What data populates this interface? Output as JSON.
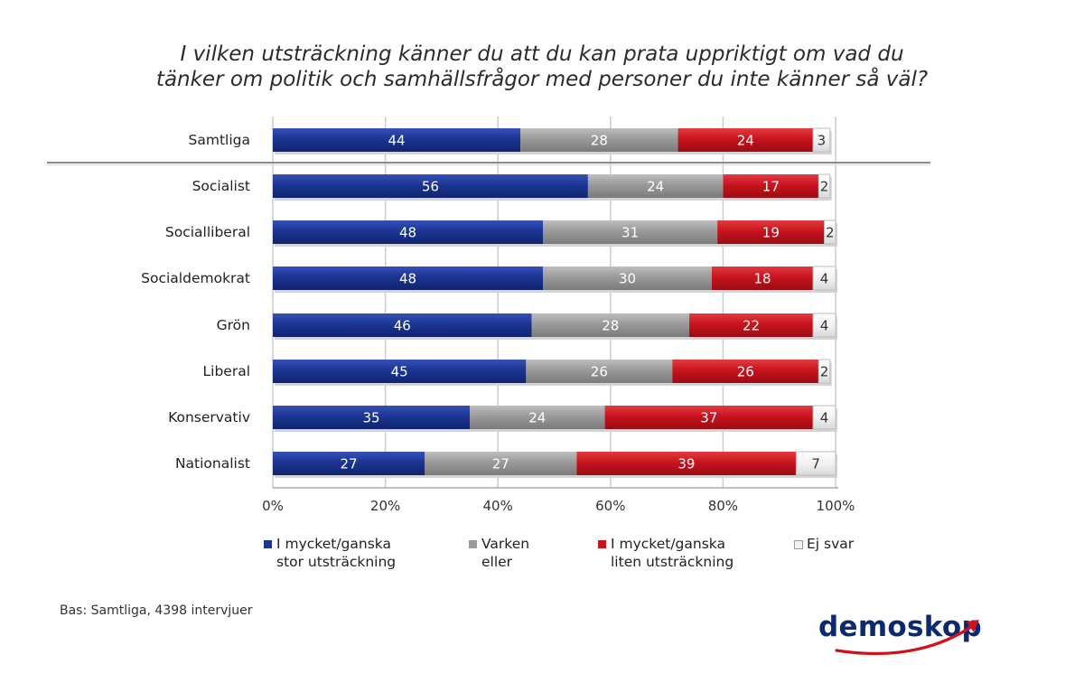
{
  "chart_data": {
    "type": "bar",
    "orientation": "horizontal",
    "stacked": true,
    "title_lines": [
      "I vilken utsträckning känner du att du kan prata uppriktigt om vad du",
      "tänker om politik och samhällsfrågor med personer du inte känner så väl?"
    ],
    "categories": [
      "Samtliga",
      "Socialist",
      "Socialliberal",
      "Socialdemokrat",
      "Grön",
      "Liberal",
      "Konservativ",
      "Nationalist"
    ],
    "series": [
      {
        "name": "I mycket/ganska stor utsträckning",
        "legend_lines": [
          "I mycket/ganska",
          "stor utsträckning"
        ],
        "color": "#1c3592",
        "values": [
          44,
          56,
          48,
          48,
          46,
          45,
          35,
          27
        ]
      },
      {
        "name": "Varken eller",
        "legend_lines": [
          "Varken",
          "eller"
        ],
        "color": "#9a9a9a",
        "values": [
          28,
          24,
          31,
          30,
          28,
          26,
          24,
          27
        ]
      },
      {
        "name": "I mycket/ganska liten utsträckning",
        "legend_lines": [
          "I mycket/ganska",
          "liten utsträckning"
        ],
        "color": "#c8141e",
        "values": [
          24,
          17,
          19,
          18,
          22,
          26,
          37,
          39
        ]
      },
      {
        "name": "Ej svar",
        "legend_lines": [
          "Ej svar"
        ],
        "color": "#f2f2f2",
        "values": [
          3,
          2,
          2,
          4,
          4,
          2,
          4,
          7
        ]
      }
    ],
    "x_ticks": [
      "0%",
      "20%",
      "40%",
      "60%",
      "80%",
      "100%"
    ],
    "xlim": [
      0,
      100
    ],
    "grid": true,
    "legend_position": "bottom"
  },
  "footnote": "Bas: Samtliga, 4398 intervjuer",
  "logo_text": "demoskop",
  "colors": {
    "accent_arrow": "#d0101a",
    "logo": "#0b2a6e"
  }
}
